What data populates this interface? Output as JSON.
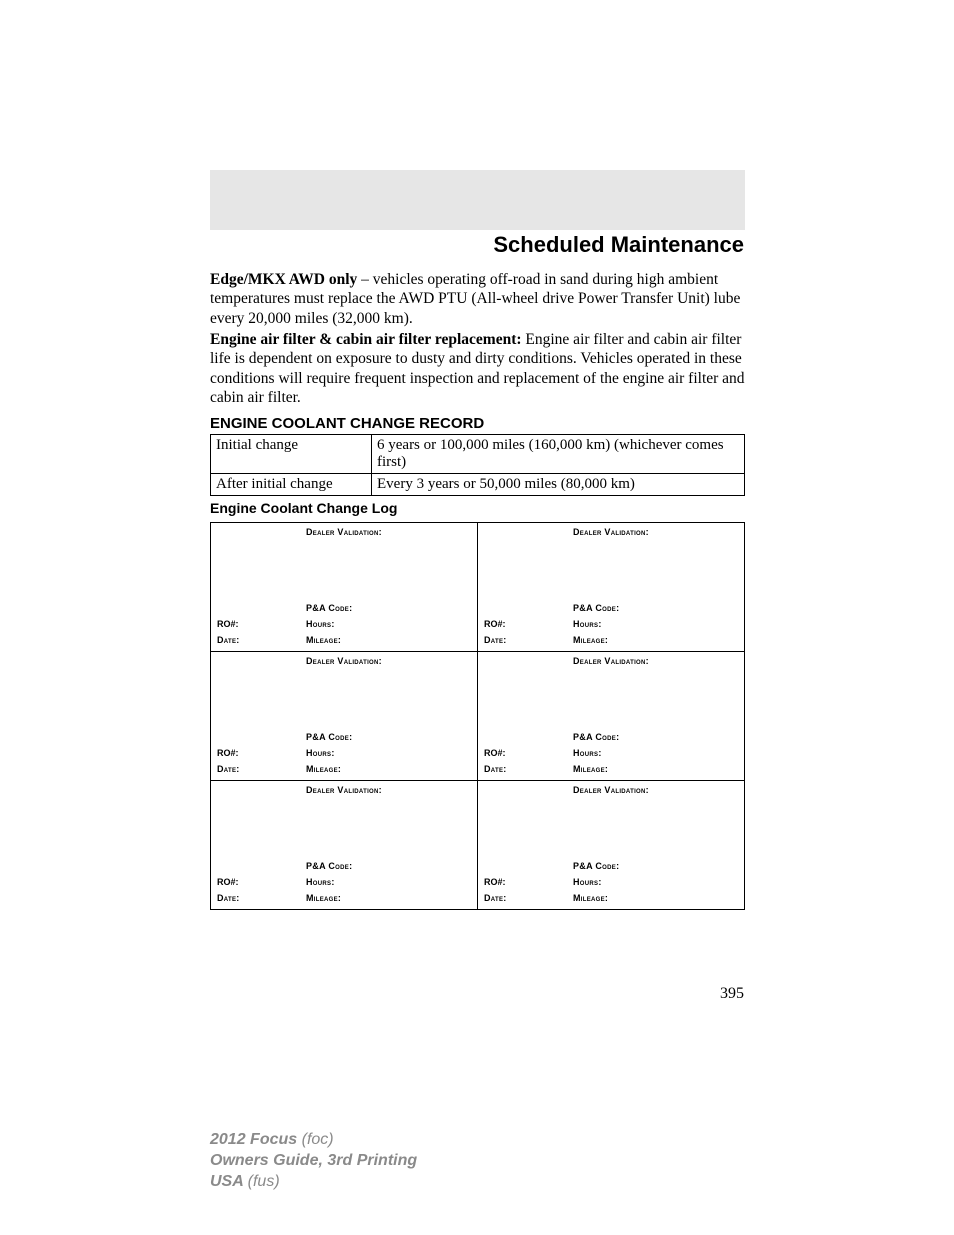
{
  "header": {
    "title": "Scheduled Maintenance"
  },
  "paragraphs": {
    "p1_bold": "Edge/MKX AWD only",
    "p1_rest": " – vehicles operating off-road in sand during high ambient temperatures must replace the AWD PTU (All-wheel drive Power Transfer Unit) lube every 20,000 miles (32,000 km).",
    "p2_bold": "Engine air filter & cabin air filter replacement:",
    "p2_rest": " Engine air filter and cabin air filter life is dependent on exposure to dusty and dirty conditions. Vehicles operated in these conditions will require frequent inspection and replacement of the engine air filter and cabin air filter."
  },
  "record": {
    "heading": "ENGINE COOLANT CHANGE RECORD",
    "rows": [
      {
        "label": "Initial change",
        "value": "6 years or 100,000 miles (160,000 km) (whichever comes first)"
      },
      {
        "label": "After initial change",
        "value": "Every 3 years or 50,000 miles (80,000 km)"
      }
    ]
  },
  "log": {
    "heading": "Engine Coolant Change Log",
    "labels": {
      "dealer_validation": "Dealer Validation:",
      "pa_code": "P&A Code:",
      "ro": "RO#:",
      "hours": "Hours:",
      "date": "Date:",
      "mileage": "Mileage:"
    }
  },
  "page_number": "395",
  "footer": {
    "line1a": "2012 Focus ",
    "line1b": "(foc)",
    "line2": "Owners Guide, 3rd Printing",
    "line3a": "USA ",
    "line3b": "(fus)"
  }
}
